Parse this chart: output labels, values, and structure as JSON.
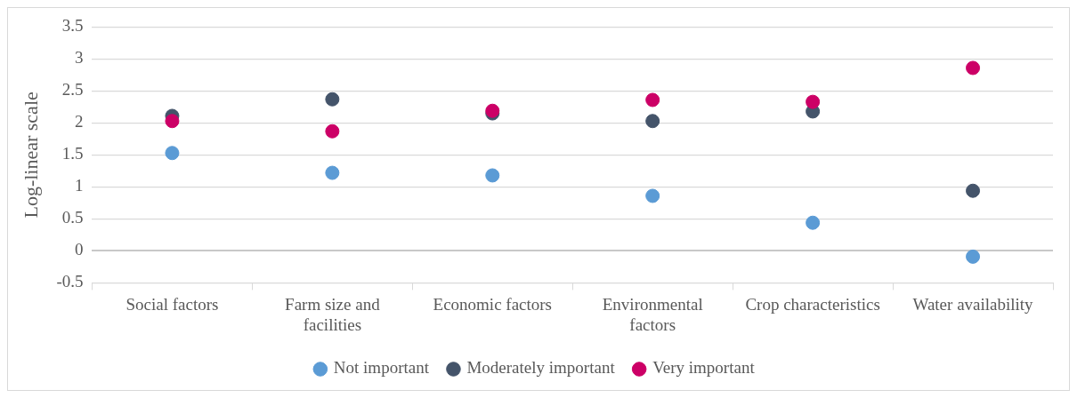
{
  "chart_data": {
    "type": "scatter",
    "ylabel": "Log-linear scale",
    "categories": [
      "Social factors",
      "Farm size and facilities",
      "Economic factors",
      "Environmental factors",
      "Crop characteristics",
      "Water availability"
    ],
    "series": [
      {
        "name": "Not important",
        "color": "#5b9bd5",
        "values": [
          1.53,
          1.22,
          1.18,
          0.86,
          0.44,
          -0.09
        ]
      },
      {
        "name": "Moderately important",
        "color": "#44546a",
        "values": [
          2.11,
          2.37,
          2.15,
          2.03,
          2.18,
          0.94
        ]
      },
      {
        "name": "Very important",
        "color": "#cc0066",
        "values": [
          2.03,
          1.87,
          2.19,
          2.36,
          2.33,
          2.86
        ]
      }
    ],
    "ylim": [
      -0.5,
      3.5
    ],
    "yticks": [
      -0.5,
      0,
      0.5,
      1,
      1.5,
      2,
      2.5,
      3,
      3.5
    ],
    "grid": "y",
    "legend": "bottom",
    "marker": "circle"
  }
}
